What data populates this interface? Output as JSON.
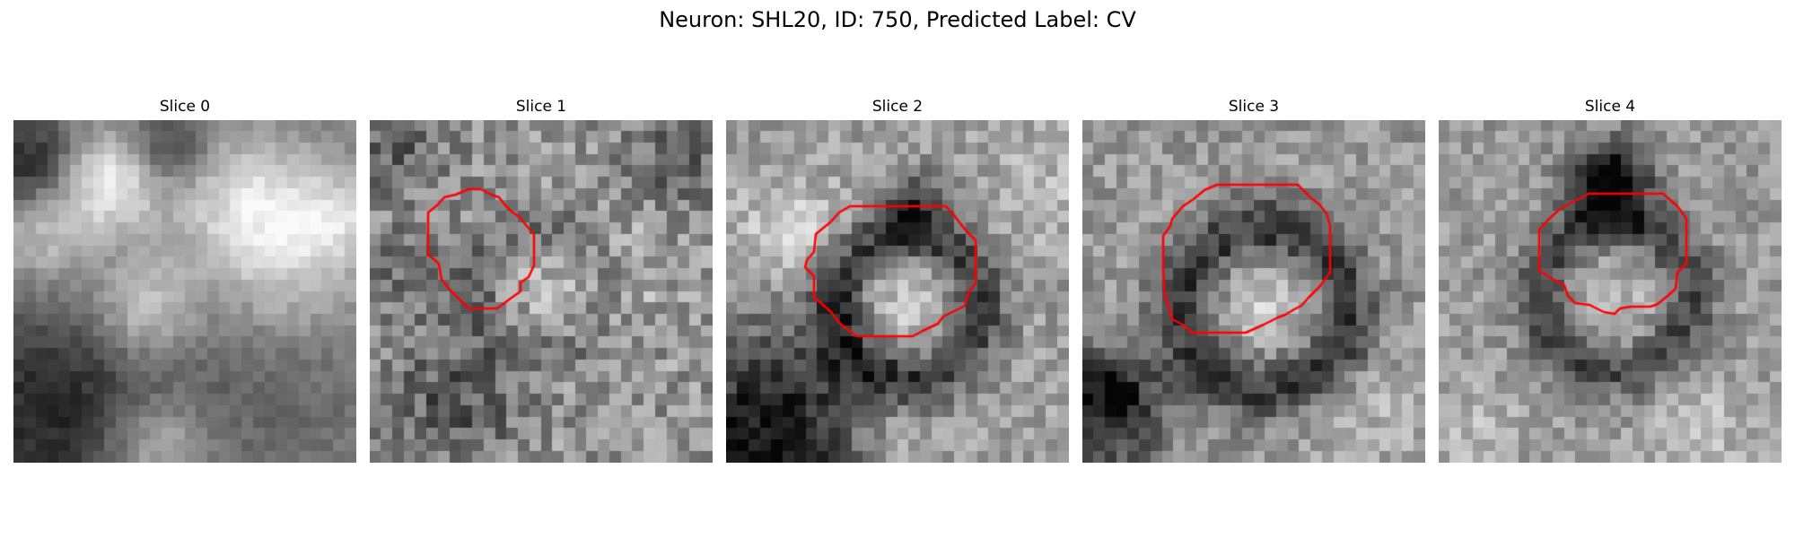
{
  "figure": {
    "title": "Neuron: SHL20, ID: 750, Predicted Label: CV",
    "contour_color": "#ff0000"
  },
  "panels": [
    {
      "title": "Slice 0",
      "has_contour": false
    },
    {
      "title": "Slice 1",
      "has_contour": true
    },
    {
      "title": "Slice 2",
      "has_contour": true
    },
    {
      "title": "Slice 3",
      "has_contour": true
    },
    {
      "title": "Slice 4",
      "has_contour": true
    }
  ]
}
